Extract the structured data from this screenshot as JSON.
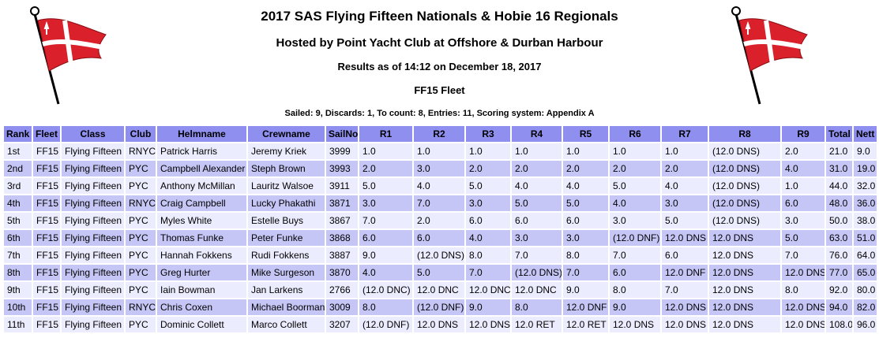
{
  "header": {
    "title": "2017 SAS Flying Fifteen Nationals & Hobie 16 Regionals",
    "hosted": "Hosted by Point Yacht Club at Offshore & Durban Harbour",
    "results_as_of": "Results as of 14:12 on December 18, 2017",
    "fleet": "FF15 Fleet",
    "summary": "Sailed: 9, Discards: 1, To count: 8, Entries: 11, Scoring system: Appendix A"
  },
  "colors": {
    "header_bg": "#8f8ff0",
    "row_light": "#ececff",
    "row_dark": "#c6c6f6",
    "flag_red": "#d9202b"
  },
  "icons": {
    "flag": "club-burgee-flag-icon"
  },
  "table": {
    "columns": [
      "Rank",
      "Fleet",
      "Class",
      "Club",
      "Helmname",
      "Crewname",
      "SailNo",
      "R1",
      "R2",
      "R3",
      "R4",
      "R5",
      "R6",
      "R7",
      "R8",
      "R9",
      "Total",
      "Nett"
    ],
    "rows": [
      [
        "1st",
        "FF15",
        "Flying Fifteen",
        "RNYC",
        "Patrick Harris",
        "Jeremy Kriek",
        "3999",
        "1.0",
        "1.0",
        "1.0",
        "1.0",
        "1.0",
        "1.0",
        "1.0",
        "(12.0 DNS)",
        "2.0",
        "21.0",
        "9.0"
      ],
      [
        "2nd",
        "FF15",
        "Flying Fifteen",
        "PYC",
        "Campbell Alexander",
        "Steph Brown",
        "3993",
        "2.0",
        "3.0",
        "2.0",
        "2.0",
        "2.0",
        "2.0",
        "2.0",
        "(12.0 DNS)",
        "4.0",
        "31.0",
        "19.0"
      ],
      [
        "3rd",
        "FF15",
        "Flying Fifteen",
        "PYC",
        "Anthony McMillan",
        "Lauritz Walsoe",
        "3911",
        "5.0",
        "4.0",
        "5.0",
        "4.0",
        "4.0",
        "5.0",
        "4.0",
        "(12.0 DNS)",
        "1.0",
        "44.0",
        "32.0"
      ],
      [
        "4th",
        "FF15",
        "Flying Fifteen",
        "RNYC",
        "Craig Campbell",
        "Lucky Phakathi",
        "3871",
        "3.0",
        "7.0",
        "3.0",
        "5.0",
        "5.0",
        "4.0",
        "3.0",
        "(12.0 DNS)",
        "6.0",
        "48.0",
        "36.0"
      ],
      [
        "5th",
        "FF15",
        "Flying Fifteen",
        "PYC",
        "Myles White",
        "Estelle Buys",
        "3867",
        "7.0",
        "2.0",
        "6.0",
        "6.0",
        "6.0",
        "3.0",
        "5.0",
        "(12.0 DNS)",
        "3.0",
        "50.0",
        "38.0"
      ],
      [
        "6th",
        "FF15",
        "Flying Fifteen",
        "PYC",
        "Thomas Funke",
        "Peter Funke",
        "3868",
        "6.0",
        "6.0",
        "4.0",
        "3.0",
        "3.0",
        "(12.0 DNF)",
        "12.0 DNS",
        "12.0 DNS",
        "5.0",
        "63.0",
        "51.0"
      ],
      [
        "7th",
        "FF15",
        "Flying Fifteen",
        "PYC",
        "Hannah Fokkens",
        "Rudi Fokkens",
        "3887",
        "9.0",
        "(12.0 DNS)",
        "8.0",
        "7.0",
        "8.0",
        "7.0",
        "6.0",
        "12.0 DNS",
        "7.0",
        "76.0",
        "64.0"
      ],
      [
        "8th",
        "FF15",
        "Flying Fifteen",
        "PYC",
        "Greg Hurter",
        "Mike Surgeson",
        "3870",
        "4.0",
        "5.0",
        "7.0",
        "(12.0 DNS)",
        "7.0",
        "6.0",
        "12.0 DNF",
        "12.0 DNS",
        "12.0 DNS",
        "77.0",
        "65.0"
      ],
      [
        "9th",
        "FF15",
        "Flying Fifteen",
        "PYC",
        "Iain Bowman",
        "Jan Larkens",
        "2766",
        "(12.0 DNC)",
        "12.0 DNC",
        "12.0 DNC",
        "12.0 DNC",
        "9.0",
        "8.0",
        "7.0",
        "12.0 DNS",
        "8.0",
        "92.0",
        "80.0"
      ],
      [
        "10th",
        "FF15",
        "Flying Fifteen",
        "RNYC",
        "Chris Coxen",
        "Michael Boorman",
        "3009",
        "8.0",
        "(12.0 DNF)",
        "9.0",
        "8.0",
        "12.0 DNF",
        "9.0",
        "12.0 DNS",
        "12.0 DNS",
        "12.0 DNS",
        "94.0",
        "82.0"
      ],
      [
        "11th",
        "FF15",
        "Flying Fifteen",
        "PYC",
        "Dominic Collett",
        "Marco Collett",
        "3207",
        "(12.0 DNF)",
        "12.0 DNS",
        "12.0 DNS",
        "12.0 RET",
        "12.0 RET",
        "12.0 DNS",
        "12.0 DNS",
        "12.0 DNS",
        "12.0 DNS",
        "108.0",
        "96.0"
      ]
    ]
  }
}
